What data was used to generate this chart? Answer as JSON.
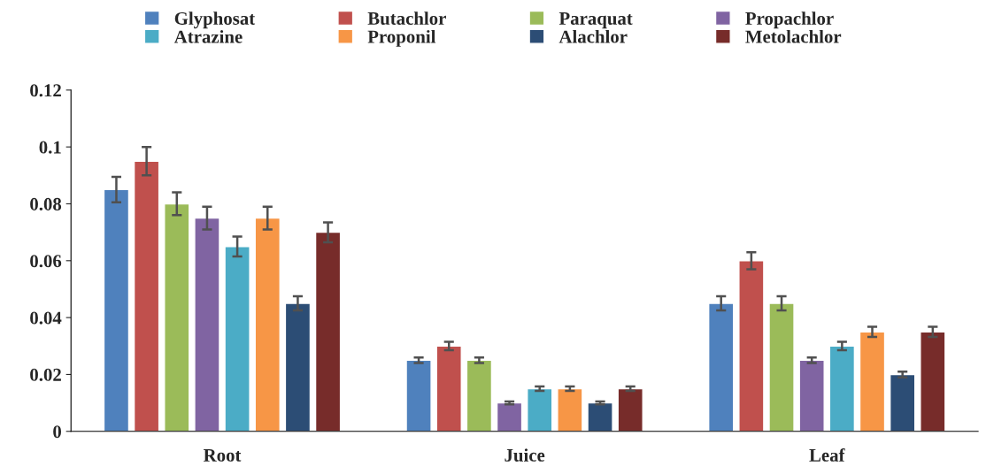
{
  "chart_data": {
    "type": "bar",
    "categories": [
      "Root",
      "Juice",
      "Leaf"
    ],
    "series": [
      {
        "name": "Glyphosat",
        "color": "#4f81bd",
        "values": [
          0.085,
          0.025,
          0.045
        ],
        "errors": [
          0.0045,
          0.001,
          0.0025
        ]
      },
      {
        "name": "Butachlor",
        "color": "#c0504d",
        "values": [
          0.095,
          0.03,
          0.06
        ],
        "errors": [
          0.005,
          0.0015,
          0.003
        ]
      },
      {
        "name": "Paraquat",
        "color": "#9bbb59",
        "values": [
          0.08,
          0.025,
          0.045
        ],
        "errors": [
          0.004,
          0.001,
          0.0025
        ]
      },
      {
        "name": "Propachlor",
        "color": "#8064a2",
        "values": [
          0.075,
          0.01,
          0.025
        ],
        "errors": [
          0.004,
          0.0005,
          0.001
        ]
      },
      {
        "name": "Atrazine",
        "color": "#4bacc6",
        "values": [
          0.065,
          0.015,
          0.03
        ],
        "errors": [
          0.0035,
          0.0008,
          0.0015
        ]
      },
      {
        "name": "Proponil",
        "color": "#f79646",
        "values": [
          0.075,
          0.015,
          0.035
        ],
        "errors": [
          0.004,
          0.0008,
          0.0018
        ]
      },
      {
        "name": "Alachlor",
        "color": "#2c4d75",
        "values": [
          0.045,
          0.01,
          0.02
        ],
        "errors": [
          0.0025,
          0.0005,
          0.001
        ]
      },
      {
        "name": "Metolachlor",
        "color": "#772c2a",
        "values": [
          0.07,
          0.015,
          0.035
        ],
        "errors": [
          0.0035,
          0.0008,
          0.0018
        ]
      }
    ],
    "ylim": [
      0,
      0.12
    ],
    "yticks": [
      0,
      0.02,
      0.04,
      0.06,
      0.08,
      0.1,
      0.12
    ],
    "grid": false,
    "legend": "top"
  }
}
